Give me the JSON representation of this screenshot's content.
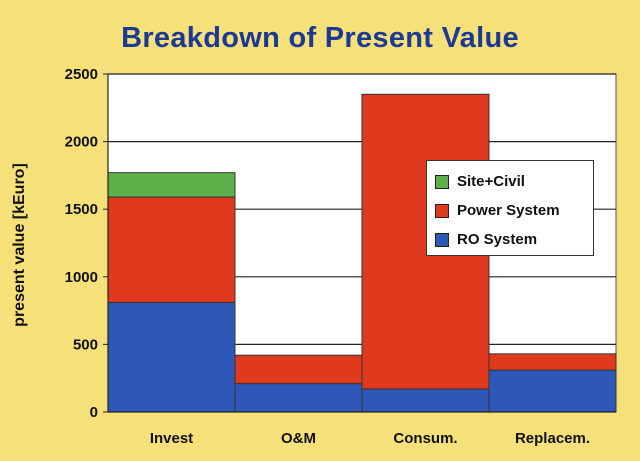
{
  "chart_data": {
    "type": "bar",
    "stacked": true,
    "title": "Breakdown of Present Value",
    "ylabel": "present value [kEuro]",
    "xlabel": "",
    "ylim": [
      0,
      2500
    ],
    "yticks": [
      0,
      500,
      1000,
      1500,
      2000,
      2500
    ],
    "grid": true,
    "legend_position": "right",
    "categories": [
      "Invest",
      "O&M",
      "Consum.",
      "Replacem."
    ],
    "series": [
      {
        "name": "RO System",
        "color": "#2e58b8",
        "values": [
          810,
          210,
          170,
          310
        ]
      },
      {
        "name": "Power System",
        "color": "#e03a1e",
        "values": [
          780,
          210,
          2180,
          120
        ]
      },
      {
        "name": "Site+Civil",
        "color": "#5fb04b",
        "values": [
          180,
          0,
          0,
          0
        ]
      }
    ],
    "legend_order": [
      "Site+Civil",
      "Power System",
      "RO System"
    ]
  }
}
